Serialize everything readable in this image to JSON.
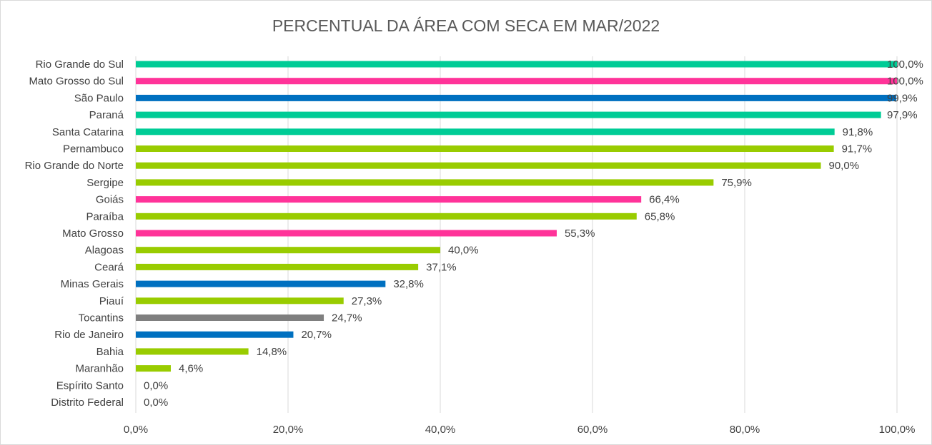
{
  "chart_data": {
    "type": "bar",
    "orientation": "horizontal",
    "title": "PERCENTUAL DA ÁREA COM SECA EM MAR/2022",
    "xlabel": "",
    "ylabel": "",
    "xlim": [
      0,
      100
    ],
    "x_ticks": [
      "0,0%",
      "20,0%",
      "40,0%",
      "60,0%",
      "80,0%",
      "100,0%"
    ],
    "grid": "vertical",
    "legend": "none",
    "categories": [
      "Rio Grande do Sul",
      "Mato Grosso do Sul",
      "São Paulo",
      "Paraná",
      "Santa Catarina",
      "Pernambuco",
      "Rio Grande do Norte",
      "Sergipe",
      "Goiás",
      "Paraíba",
      "Mato Grosso",
      "Alagoas",
      "Ceará",
      "Minas Gerais",
      "Piauí",
      "Tocantins",
      "Rio de Janeiro",
      "Bahia",
      "Maranhão",
      "Espírito Santo",
      "Distrito Federal"
    ],
    "values": [
      100.0,
      100.0,
      99.9,
      97.9,
      91.8,
      91.7,
      90.0,
      75.9,
      66.4,
      65.8,
      55.3,
      40.0,
      37.1,
      32.8,
      27.3,
      24.7,
      20.7,
      14.8,
      4.6,
      0.0,
      0.0
    ],
    "data_labels": [
      "100,0%",
      "100,0%",
      "99,9%",
      "97,9%",
      "91,8%",
      "91,7%",
      "90,0%",
      "75,9%",
      "66,4%",
      "65,8%",
      "55,3%",
      "40,0%",
      "37,1%",
      "32,8%",
      "27,3%",
      "24,7%",
      "20,7%",
      "14,8%",
      "4,6%",
      "0,0%",
      "0,0%"
    ],
    "bar_colors": [
      "#00CC96",
      "#FF3399",
      "#0070C0",
      "#00CC96",
      "#00CC96",
      "#99CC00",
      "#99CC00",
      "#99CC00",
      "#FF3399",
      "#99CC00",
      "#FF3399",
      "#99CC00",
      "#99CC00",
      "#0070C0",
      "#99CC00",
      "#7F7F7F",
      "#0070C0",
      "#99CC00",
      "#99CC00",
      "#99CC00",
      "#99CC00"
    ]
  }
}
